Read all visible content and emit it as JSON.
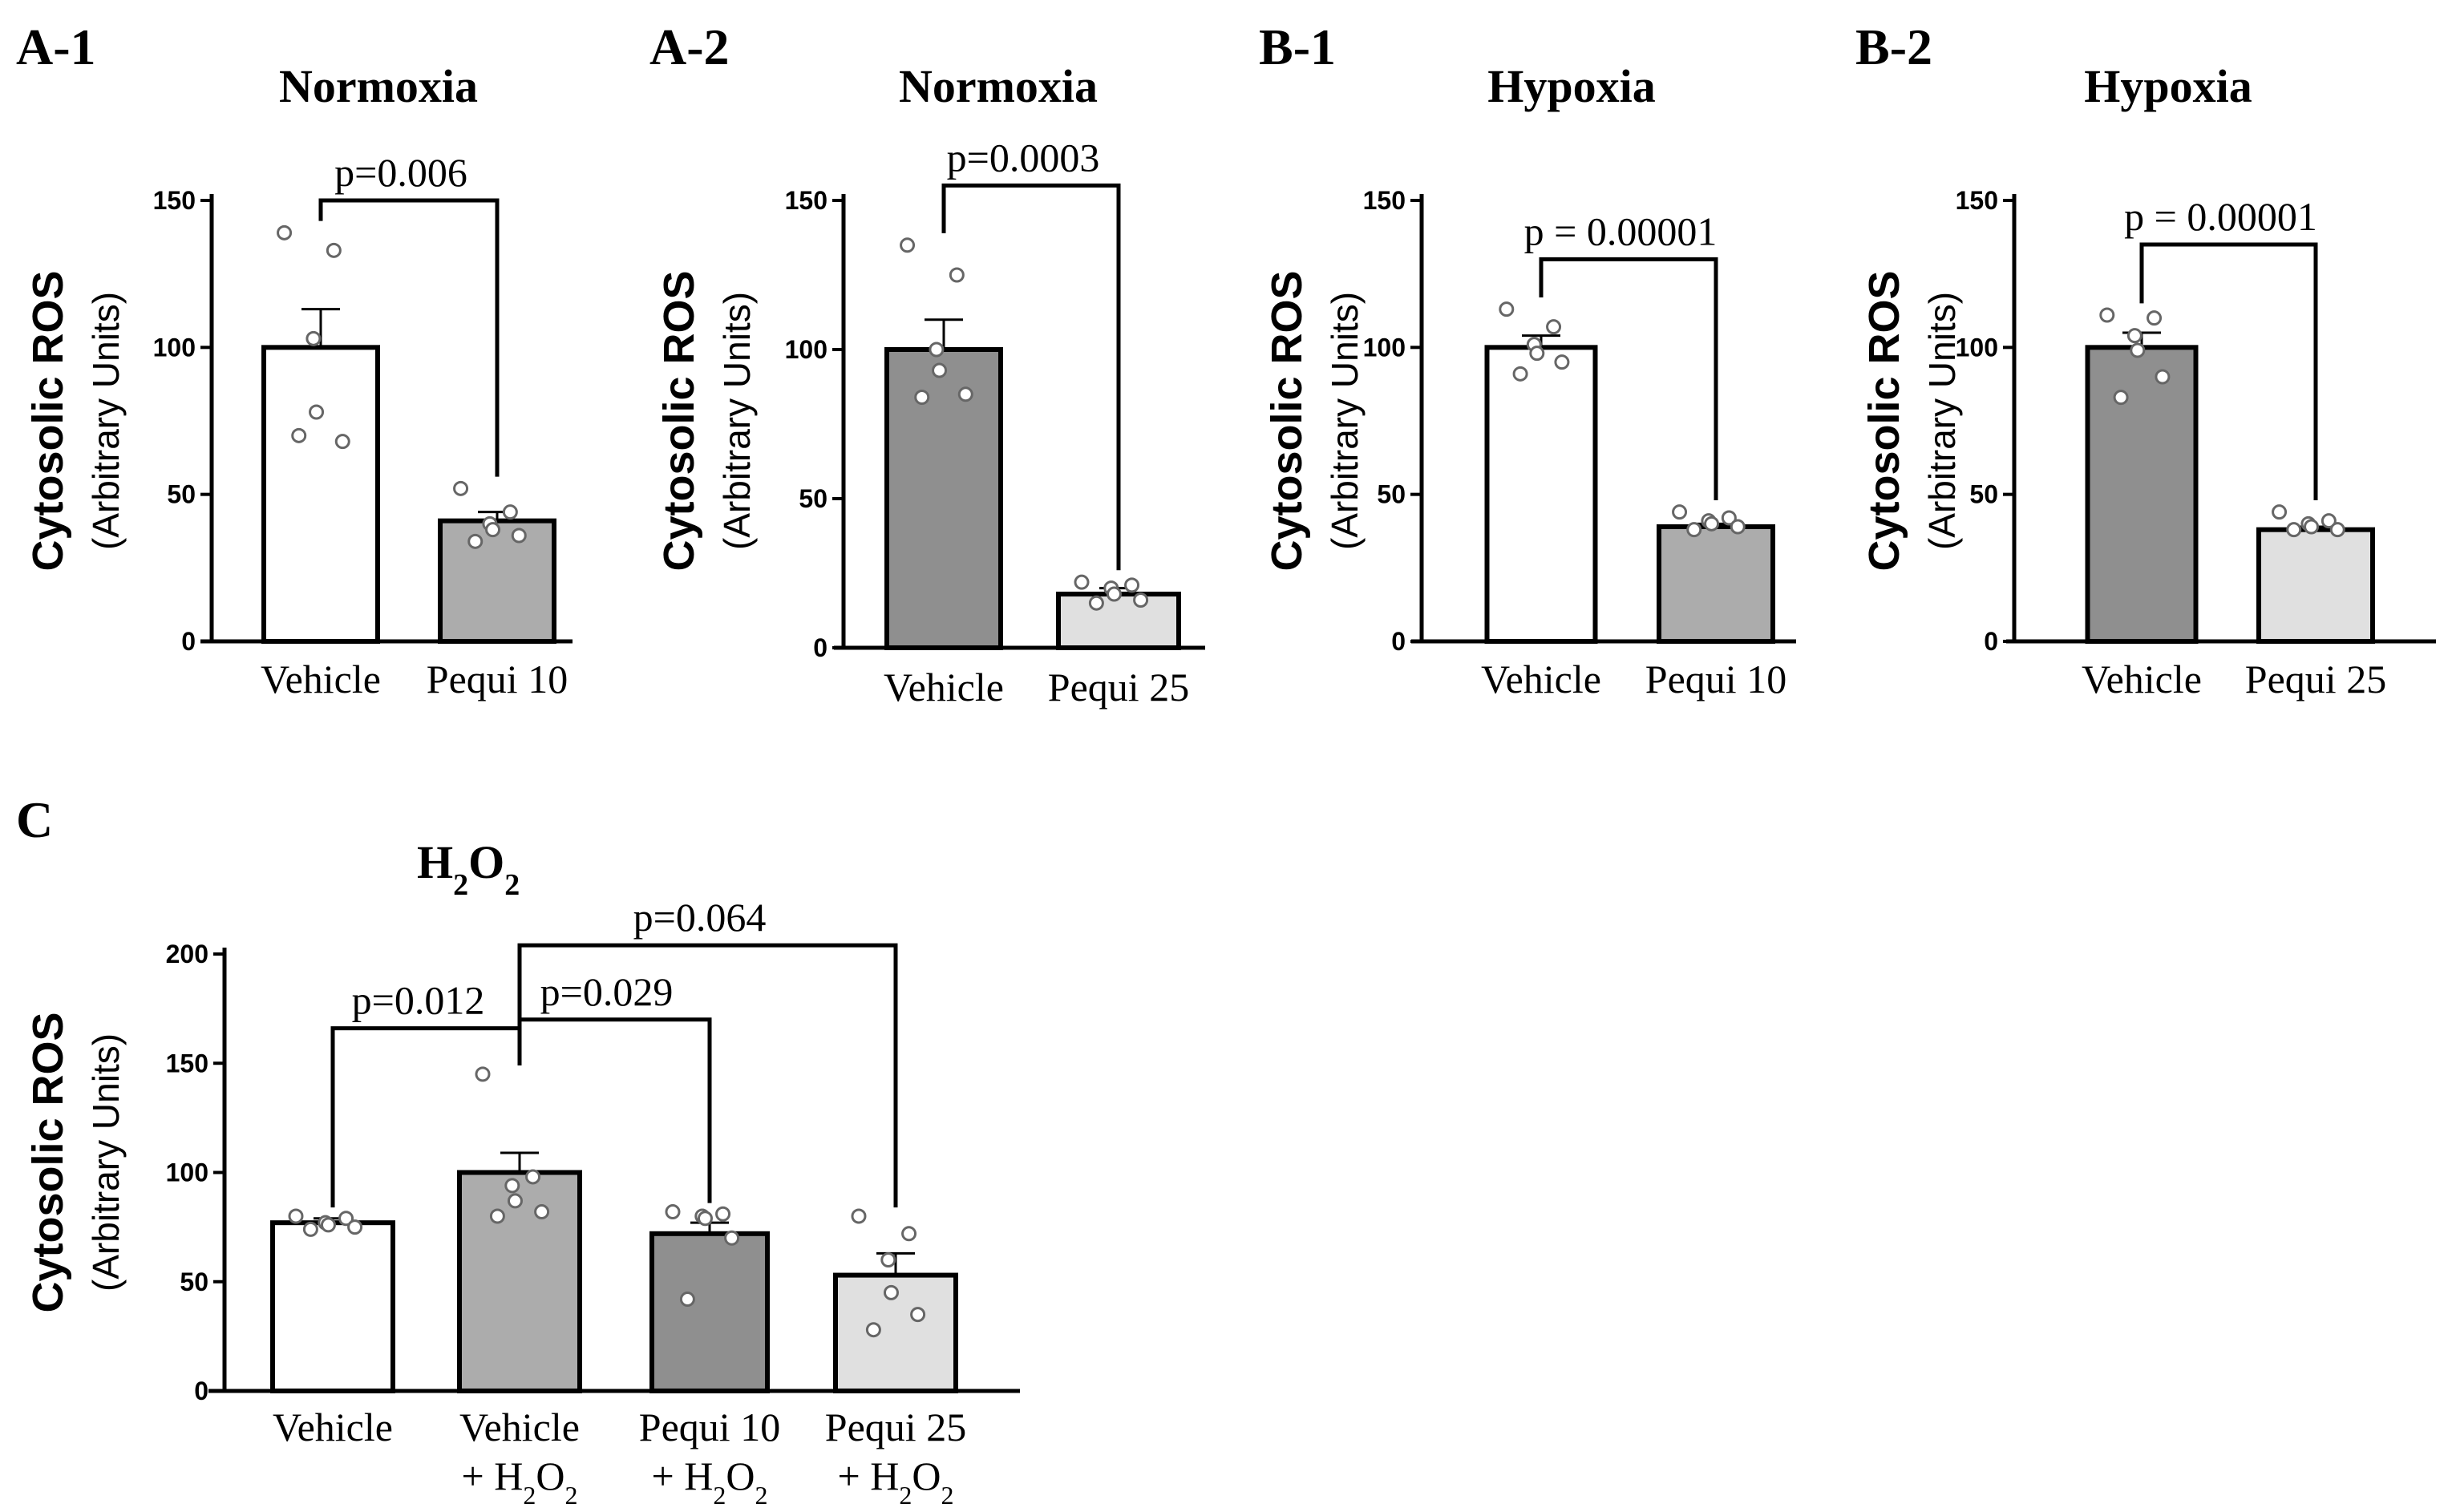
{
  "colors": {
    "white": "#ffffff",
    "light_gray": "#e0e0e0",
    "mid_gray": "#acacac",
    "dark_gray": "#8f8f8f",
    "ink": "#000000",
    "point_edge": "#666666"
  },
  "chart_data": [
    {
      "panel": "A-1",
      "type": "bar",
      "title": "Normoxia",
      "ylabel": "Cytosolic ROS",
      "ylabel2": "(Arbitrary Units)",
      "ylim": [
        0,
        150
      ],
      "yticks": [
        "0",
        "50",
        "100",
        "150"
      ],
      "categories": [
        {
          "label": "Vehicle",
          "sub": ""
        },
        {
          "label": "Pequi 10",
          "sub": ""
        }
      ],
      "values": [
        100,
        41
      ],
      "errors": [
        13,
        3
      ],
      "fill_colors": [
        "#ffffff",
        "#acacac"
      ],
      "points": [
        [
          139,
          133,
          103,
          78,
          68,
          70
        ],
        [
          52,
          44,
          40,
          38,
          36,
          34
        ]
      ],
      "comparisons": [
        {
          "a": 0,
          "b": 1,
          "y": 150,
          "label": "p=0.006"
        }
      ]
    },
    {
      "panel": "A-2",
      "type": "bar",
      "title": "Normoxia",
      "ylabel": "Cytosolic ROS",
      "ylabel2": "(Arbitrary Units)",
      "ylim": [
        0,
        150
      ],
      "yticks": [
        "0",
        "50",
        "100",
        "150"
      ],
      "categories": [
        {
          "label": "Vehicle",
          "sub": ""
        },
        {
          "label": "Pequi 25",
          "sub": ""
        }
      ],
      "values": [
        100,
        18
      ],
      "errors": [
        10,
        2
      ],
      "fill_colors": [
        "#8f8f8f",
        "#e0e0e0"
      ],
      "points": [
        [
          135,
          125,
          100,
          93,
          85,
          84
        ],
        [
          22,
          21,
          20,
          18,
          16,
          15
        ]
      ],
      "comparisons": [
        {
          "a": 0,
          "b": 1,
          "y": 155,
          "label": "p=0.0003"
        }
      ]
    },
    {
      "panel": "B-1",
      "type": "bar",
      "title": "Hypoxia",
      "ylabel": "Cytosolic ROS",
      "ylabel2": "(Arbitrary Units)",
      "ylim": [
        0,
        150
      ],
      "yticks": [
        "0",
        "50",
        "100",
        "150"
      ],
      "categories": [
        {
          "label": "Vehicle",
          "sub": ""
        },
        {
          "label": "Pequi 10",
          "sub": ""
        }
      ],
      "values": [
        100,
        39
      ],
      "errors": [
        4,
        1
      ],
      "fill_colors": [
        "#ffffff",
        "#acacac"
      ],
      "points": [
        [
          113,
          107,
          101,
          98,
          95,
          91
        ],
        [
          44,
          42,
          41,
          40,
          39,
          38
        ]
      ],
      "comparisons": [
        {
          "a": 0,
          "b": 1,
          "y": 130,
          "label": "p = 0.00001"
        }
      ]
    },
    {
      "panel": "B-2",
      "type": "bar",
      "title": "Hypoxia",
      "ylabel": "Cytosolic ROS",
      "ylabel2": "(Arbitrary Units)",
      "ylim": [
        0,
        150
      ],
      "yticks": [
        "0",
        "50",
        "100",
        "150"
      ],
      "categories": [
        {
          "label": "Vehicle",
          "sub": ""
        },
        {
          "label": "Pequi 25",
          "sub": ""
        }
      ],
      "values": [
        100,
        38
      ],
      "errors": [
        5,
        1
      ],
      "fill_colors": [
        "#8f8f8f",
        "#e0e0e0"
      ],
      "points": [
        [
          111,
          110,
          104,
          99,
          90,
          83
        ],
        [
          44,
          41,
          40,
          39,
          38,
          38
        ]
      ],
      "comparisons": [
        {
          "a": 0,
          "b": 1,
          "y": 135,
          "label": "p = 0.00001"
        }
      ]
    },
    {
      "panel": "C",
      "type": "bar",
      "title": "H2O2",
      "title_parts": [
        "H",
        "2",
        "O",
        "2"
      ],
      "ylabel": "Cytosolic ROS",
      "ylabel2": "(Arbitrary Units)",
      "ylim": [
        0,
        200
      ],
      "yticks": [
        "0",
        "50",
        "100",
        "150",
        "200"
      ],
      "categories": [
        {
          "label": "Vehicle",
          "sub": ""
        },
        {
          "label": "Vehicle",
          "sub": "+ H2O2"
        },
        {
          "label": "Pequi 10",
          "sub": "+ H2O2"
        },
        {
          "label": "Pequi 25",
          "sub": "+ H2O2"
        }
      ],
      "sub_parts": [
        "+ H",
        "2",
        "O",
        "2"
      ],
      "values": [
        77,
        100,
        72,
        53
      ],
      "errors": [
        2,
        9,
        5,
        10
      ],
      "fill_colors": [
        "#ffffff",
        "#acacac",
        "#8f8f8f",
        "#e0e0e0"
      ],
      "points": [
        [
          80,
          79,
          77,
          76,
          75,
          74
        ],
        [
          145,
          98,
          94,
          87,
          82,
          80
        ],
        [
          82,
          81,
          80,
          79,
          70,
          42
        ],
        [
          80,
          72,
          60,
          45,
          35,
          28
        ]
      ],
      "comparisons": [
        {
          "a": 0,
          "b": 1,
          "y": 166,
          "label": "p=0.012"
        },
        {
          "a": 1,
          "b": 2,
          "y": 170,
          "label": "p=0.029"
        },
        {
          "a": 1,
          "b": 3,
          "y": 204,
          "label": "p=0.064"
        }
      ]
    }
  ]
}
